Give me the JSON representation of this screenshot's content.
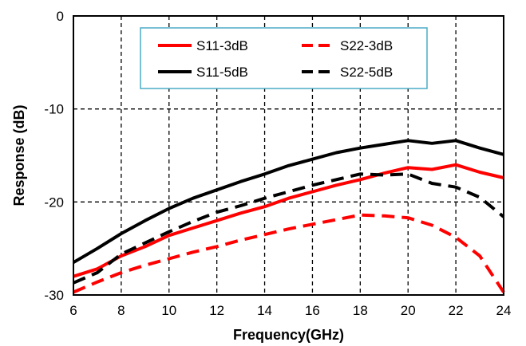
{
  "chart_data": {
    "type": "line",
    "title": "",
    "xlabel": "Frequency(GHz)",
    "ylabel": "Response (dB)",
    "xlim": [
      6,
      24
    ],
    "ylim": [
      -30,
      0
    ],
    "xticks": [
      6,
      8,
      10,
      12,
      14,
      16,
      18,
      20,
      22,
      24
    ],
    "yticks": [
      0,
      -10,
      -20,
      -30
    ],
    "xtick_labels": [
      "6",
      "8",
      "10",
      "12",
      "14",
      "16",
      "18",
      "20",
      "22",
      "24"
    ],
    "ytick_labels": [
      "0",
      "-10",
      "-20",
      "-30"
    ],
    "grid": true,
    "legend_position": "top-center",
    "series": [
      {
        "name": "S11-3dB",
        "color": "#ff0000",
        "style": "solid",
        "x": [
          6,
          7,
          8,
          9,
          10,
          11,
          12,
          13,
          14,
          15,
          16,
          17,
          18,
          19,
          20,
          21,
          22,
          23,
          24
        ],
        "y": [
          -28.0,
          -27.2,
          -25.8,
          -24.8,
          -23.6,
          -22.8,
          -22.0,
          -21.2,
          -20.5,
          -19.6,
          -18.9,
          -18.2,
          -17.6,
          -16.9,
          -16.3,
          -16.5,
          -16.0,
          -16.8,
          -17.4
        ]
      },
      {
        "name": "S22-3dB",
        "color": "#ff0000",
        "style": "dashed",
        "x": [
          6,
          7,
          8,
          9,
          10,
          11,
          12,
          13,
          14,
          15,
          16,
          17,
          18,
          19,
          20,
          21,
          22,
          23,
          24
        ],
        "y": [
          -29.7,
          -28.6,
          -27.6,
          -26.8,
          -26.1,
          -25.4,
          -24.8,
          -24.1,
          -23.5,
          -22.9,
          -22.4,
          -21.9,
          -21.4,
          -21.5,
          -21.7,
          -22.5,
          -23.8,
          -25.8,
          -29.7
        ]
      },
      {
        "name": "S11-5dB",
        "color": "#000000",
        "style": "solid",
        "x": [
          6,
          7,
          8,
          9,
          10,
          11,
          12,
          13,
          14,
          15,
          16,
          17,
          18,
          19,
          20,
          21,
          22,
          23,
          24
        ],
        "y": [
          -26.5,
          -25.0,
          -23.4,
          -22.0,
          -20.7,
          -19.6,
          -18.7,
          -17.8,
          -17.0,
          -16.1,
          -15.4,
          -14.7,
          -14.2,
          -13.8,
          -13.4,
          -13.7,
          -13.4,
          -14.2,
          -14.9
        ]
      },
      {
        "name": "S22-5dB",
        "color": "#000000",
        "style": "dashed",
        "x": [
          6,
          7,
          8,
          9,
          10,
          11,
          12,
          13,
          14,
          15,
          16,
          17,
          18,
          19,
          20,
          21,
          22,
          23,
          24
        ],
        "y": [
          -28.7,
          -27.6,
          -25.6,
          -24.4,
          -23.2,
          -22.1,
          -21.1,
          -20.4,
          -19.6,
          -18.9,
          -18.2,
          -17.6,
          -17.0,
          -17.1,
          -17.0,
          -18.0,
          -18.4,
          -19.5,
          -21.6
        ]
      }
    ]
  }
}
